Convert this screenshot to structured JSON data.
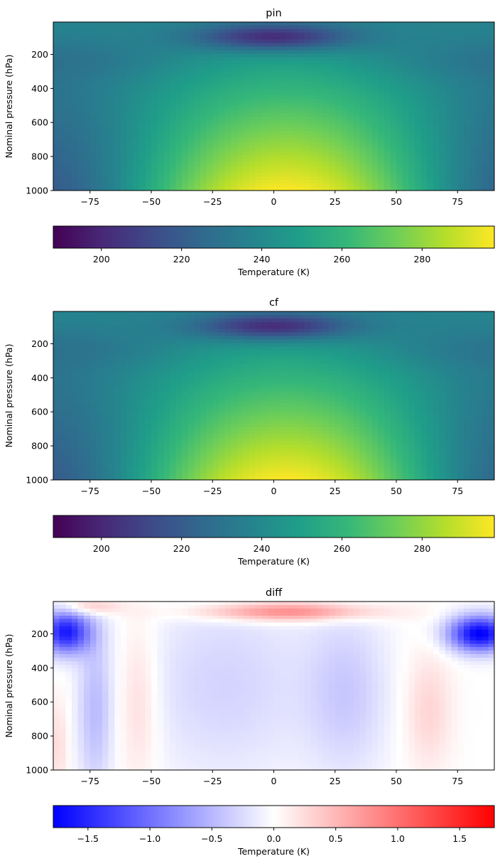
{
  "chart_data": [
    {
      "type": "heatmap",
      "title": "pin",
      "ylabel": "Nominal pressure (hPa)",
      "xlim": [
        -90,
        90
      ],
      "ylim": [
        1000,
        10
      ],
      "xticks": [
        -75,
        -50,
        -25,
        0,
        25,
        50,
        75
      ],
      "yticks": [
        200,
        400,
        600,
        800,
        1000
      ],
      "colormap": "viridis",
      "colorbar": {
        "label": "Temperature (K)",
        "range": [
          188,
          298
        ],
        "ticks": [
          200,
          220,
          240,
          260,
          280
        ]
      },
      "field_description": "temperature vs latitude and pressure",
      "colors": [
        "#440154",
        "#482878",
        "#3e4a89",
        "#31688e",
        "#26828e",
        "#1f9e89",
        "#35b779",
        "#6ece58",
        "#b5de2b",
        "#fde725"
      ]
    },
    {
      "type": "heatmap",
      "title": "cf",
      "ylabel": "Nominal pressure (hPa)",
      "xlim": [
        -90,
        90
      ],
      "ylim": [
        1000,
        10
      ],
      "xticks": [
        -75,
        -50,
        -25,
        0,
        25,
        50,
        75
      ],
      "yticks": [
        200,
        400,
        600,
        800,
        1000
      ],
      "colormap": "viridis",
      "colorbar": {
        "label": "Temperature (K)",
        "range": [
          188,
          298
        ],
        "ticks": [
          200,
          220,
          240,
          260,
          280
        ]
      },
      "colors": [
        "#440154",
        "#482878",
        "#3e4a89",
        "#31688e",
        "#26828e",
        "#1f9e89",
        "#35b779",
        "#6ece58",
        "#b5de2b",
        "#fde725"
      ]
    },
    {
      "type": "heatmap",
      "title": "diff",
      "ylabel": "Nominal pressure (hPa)",
      "xlim": [
        -90,
        90
      ],
      "ylim": [
        1000,
        10
      ],
      "xticks": [
        -75,
        -50,
        -25,
        0,
        25,
        50,
        75
      ],
      "yticks": [
        200,
        400,
        600,
        800,
        1000
      ],
      "colormap": "bwr",
      "colorbar": {
        "label": "Temperature (K)",
        "range": [
          -1.78,
          1.78
        ],
        "ticks": [
          "−1.5",
          "−1.0",
          "−0.5",
          "0.0",
          "0.5",
          "1.0",
          "1.5"
        ]
      },
      "colors": [
        "#0000ff",
        "#ffffff",
        "#ff0000"
      ]
    }
  ]
}
